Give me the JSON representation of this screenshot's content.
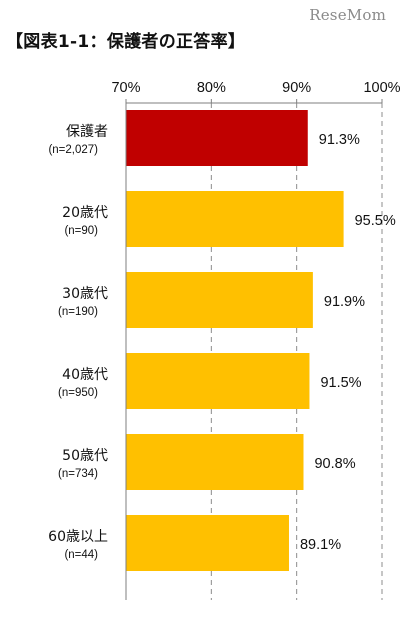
{
  "watermark": "ReseMom",
  "title": "【図表1-1：保護者の正答率】",
  "chart_data": {
    "type": "bar",
    "orientation": "horizontal",
    "title": "【図表1-1：保護者の正答率】",
    "xlabel": "",
    "ylabel": "",
    "xlim": [
      70,
      100
    ],
    "x_ticks": [
      70,
      80,
      90,
      100
    ],
    "x_tick_labels": [
      "70%",
      "80%",
      "90%",
      "100%"
    ],
    "grid": "dashed vertical gridlines at 80%, 90%, 100%",
    "categories": [
      {
        "label": "保護者",
        "n": "(n=2,027)"
      },
      {
        "label": "20歳代",
        "n": "(n=90)"
      },
      {
        "label": "30歳代",
        "n": "(n=190)"
      },
      {
        "label": "40歳代",
        "n": "(n=950)"
      },
      {
        "label": "50歳代",
        "n": "(n=734)"
      },
      {
        "label": "60歳以上",
        "n": "(n=44)"
      }
    ],
    "values": [
      91.3,
      95.5,
      91.9,
      91.5,
      90.8,
      89.1
    ],
    "value_labels": [
      "91.3%",
      "95.5%",
      "91.9%",
      "91.5%",
      "90.8%",
      "89.1%"
    ],
    "colors": [
      "#c00000",
      "#ffc000",
      "#ffc000",
      "#ffc000",
      "#ffc000",
      "#ffc000"
    ]
  }
}
